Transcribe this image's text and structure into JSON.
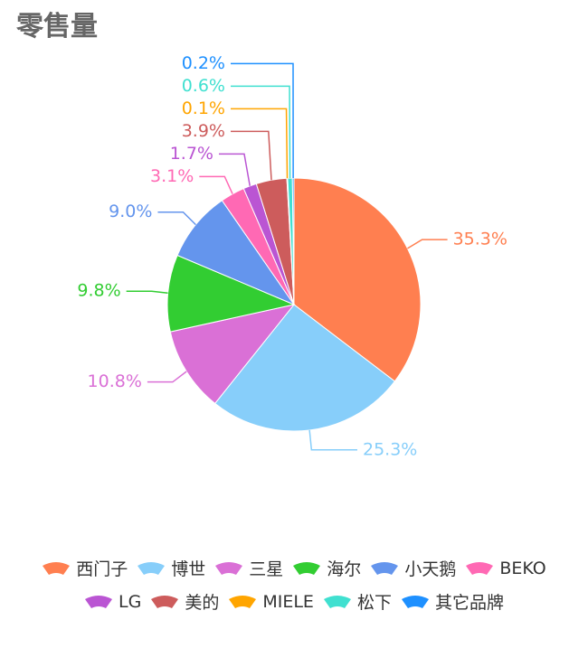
{
  "chart_data": {
    "type": "pie",
    "title": "零售量",
    "categories": [
      "西门子",
      "博世",
      "三星",
      "海尔",
      "小天鹅",
      "BEKO",
      "LG",
      "美的",
      "MIELE",
      "松下",
      "其它品牌"
    ],
    "values": [
      35.3,
      25.3,
      10.8,
      9.8,
      9.0,
      3.1,
      1.7,
      3.9,
      0.1,
      0.6,
      0.2
    ],
    "value_labels": [
      "35.3%",
      "25.3%",
      "10.8%",
      "9.8%",
      "9.0%",
      "3.1%",
      "1.7%",
      "3.9%",
      "0.1%",
      "0.6%",
      "0.2%"
    ],
    "colors": [
      "#ff7f50",
      "#87cefa",
      "#da70d6",
      "#32cd32",
      "#6495ed",
      "#ff69b4",
      "#ba55d3",
      "#cd5c5c",
      "#ffa500",
      "#40e0d0",
      "#1e90ff"
    ]
  }
}
